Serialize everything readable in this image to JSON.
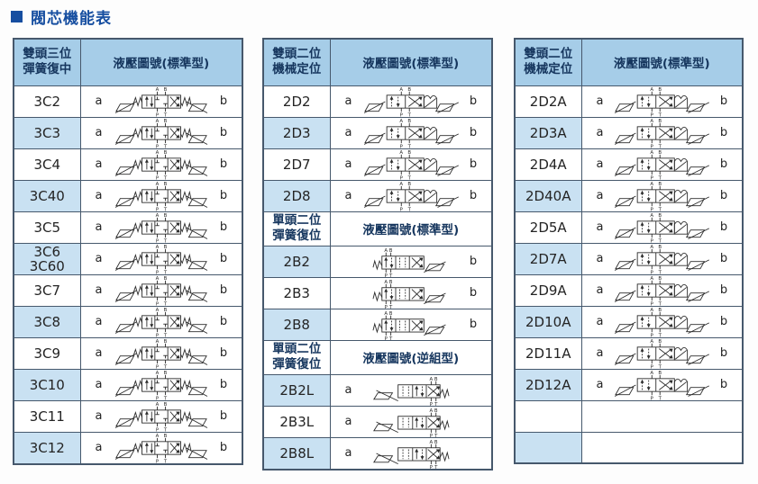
{
  "title": {
    "text": "閥芯機能表"
  },
  "colors": {
    "accent": "#164ea0",
    "header_bg": "#a6cde8",
    "shaded_bg": "#c9e1f2",
    "border": "#46586c",
    "symbol_ink": "#2b2b2b"
  },
  "symbol_legend": {
    "valve-3pos-spring-centered": "double-solenoid 3-position spring-centered valve schematic",
    "valve-2pos-detent": "double-solenoid 2-position mechanical-detent valve schematic",
    "valve-2pos-spring-left": "single-solenoid 2-position spring-return valve schematic (spring left)",
    "valve-2pos-spring-right": "single-solenoid 2-position spring-return valve schematic, reversed (spring right)"
  },
  "tables": [
    {
      "name": "three-position-spring-centered",
      "rows": [
        {
          "kind": "header",
          "title_lines": [
            "雙頭三位",
            "彈簧復中"
          ],
          "caption": "液壓圖號(標準型)"
        },
        {
          "kind": "data",
          "model": [
            "3C2"
          ],
          "a": "a",
          "b": "b",
          "symbol": "valve-3pos-spring-centered",
          "shaded": false
        },
        {
          "kind": "data",
          "model": [
            "3C3"
          ],
          "a": "a",
          "b": "b",
          "symbol": "valve-3pos-spring-centered",
          "shaded": true
        },
        {
          "kind": "data",
          "model": [
            "3C4"
          ],
          "a": "a",
          "b": "b",
          "symbol": "valve-3pos-spring-centered",
          "shaded": false
        },
        {
          "kind": "data",
          "model": [
            "3C40"
          ],
          "a": "a",
          "b": "b",
          "symbol": "valve-3pos-spring-centered",
          "shaded": true
        },
        {
          "kind": "data",
          "model": [
            "3C5"
          ],
          "a": "a",
          "b": "b",
          "symbol": "valve-3pos-spring-centered",
          "shaded": false
        },
        {
          "kind": "data",
          "model": [
            "3C6",
            "3C60"
          ],
          "a": "a",
          "b": "b",
          "symbol": "valve-3pos-spring-centered",
          "shaded": true
        },
        {
          "kind": "data",
          "model": [
            "3C7"
          ],
          "a": "a",
          "b": "b",
          "symbol": "valve-3pos-spring-centered",
          "shaded": false
        },
        {
          "kind": "data",
          "model": [
            "3C8"
          ],
          "a": "a",
          "b": "b",
          "symbol": "valve-3pos-spring-centered",
          "shaded": true
        },
        {
          "kind": "data",
          "model": [
            "3C9"
          ],
          "a": "a",
          "b": "b",
          "symbol": "valve-3pos-spring-centered",
          "shaded": false
        },
        {
          "kind": "data",
          "model": [
            "3C10"
          ],
          "a": "a",
          "b": "b",
          "symbol": "valve-3pos-spring-centered",
          "shaded": true
        },
        {
          "kind": "data",
          "model": [
            "3C11"
          ],
          "a": "a",
          "b": "b",
          "symbol": "valve-3pos-spring-centered",
          "shaded": false
        },
        {
          "kind": "data",
          "model": [
            "3C12"
          ],
          "a": "a",
          "b": "b",
          "symbol": "valve-3pos-spring-centered",
          "shaded": true
        }
      ]
    },
    {
      "name": "two-position-detent-and-spring-return",
      "rows": [
        {
          "kind": "header",
          "title_lines": [
            "雙頭二位",
            "機械定位"
          ],
          "caption": "液壓圖號(標準型)"
        },
        {
          "kind": "data",
          "model": [
            "2D2"
          ],
          "a": "a",
          "b": "b",
          "symbol": "valve-2pos-detent",
          "shaded": false
        },
        {
          "kind": "data",
          "model": [
            "2D3"
          ],
          "a": "a",
          "b": "b",
          "symbol": "valve-2pos-detent",
          "shaded": true
        },
        {
          "kind": "data",
          "model": [
            "2D7"
          ],
          "a": "a",
          "b": "b",
          "symbol": "valve-2pos-detent",
          "shaded": false
        },
        {
          "kind": "data",
          "model": [
            "2D8"
          ],
          "a": "a",
          "b": "b",
          "symbol": "valve-2pos-detent",
          "shaded": true
        },
        {
          "kind": "subheader",
          "title_lines": [
            "單頭二位",
            "彈簧復位"
          ],
          "caption": "液壓圖號(標準型)"
        },
        {
          "kind": "data",
          "model": [
            "2B2"
          ],
          "a": "",
          "b": "b",
          "symbol": "valve-2pos-spring-left",
          "shaded": true
        },
        {
          "kind": "data",
          "model": [
            "2B3"
          ],
          "a": "",
          "b": "b",
          "symbol": "valve-2pos-spring-left",
          "shaded": false
        },
        {
          "kind": "data",
          "model": [
            "2B8"
          ],
          "a": "",
          "b": "b",
          "symbol": "valve-2pos-spring-left",
          "shaded": true
        },
        {
          "kind": "subheader",
          "title_lines": [
            "單頭二位",
            "彈簧復位"
          ],
          "caption": "液壓圖號(逆組型)"
        },
        {
          "kind": "data",
          "model": [
            "2B2L"
          ],
          "a": "a",
          "b": "",
          "symbol": "valve-2pos-spring-right",
          "shaded": true
        },
        {
          "kind": "data",
          "model": [
            "2B3L"
          ],
          "a": "a",
          "b": "",
          "symbol": "valve-2pos-spring-right",
          "shaded": false
        },
        {
          "kind": "data",
          "model": [
            "2B8L"
          ],
          "a": "a",
          "b": "",
          "symbol": "valve-2pos-spring-right",
          "shaded": true
        }
      ]
    },
    {
      "name": "two-position-detent-A-series",
      "rows": [
        {
          "kind": "header",
          "title_lines": [
            "雙頭二位",
            "機械定位"
          ],
          "caption": "液壓圖號(標準型)"
        },
        {
          "kind": "data",
          "model": [
            "2D2A"
          ],
          "a": "a",
          "b": "b",
          "symbol": "valve-2pos-detent",
          "shaded": false
        },
        {
          "kind": "data",
          "model": [
            "2D3A"
          ],
          "a": "a",
          "b": "b",
          "symbol": "valve-2pos-detent",
          "shaded": true
        },
        {
          "kind": "data",
          "model": [
            "2D4A"
          ],
          "a": "a",
          "b": "b",
          "symbol": "valve-2pos-detent",
          "shaded": false
        },
        {
          "kind": "data",
          "model": [
            "2D40A"
          ],
          "a": "a",
          "b": "b",
          "symbol": "valve-2pos-detent",
          "shaded": true
        },
        {
          "kind": "data",
          "model": [
            "2D5A"
          ],
          "a": "a",
          "b": "b",
          "symbol": "valve-2pos-detent",
          "shaded": false
        },
        {
          "kind": "data",
          "model": [
            "2D7A"
          ],
          "a": "a",
          "b": "b",
          "symbol": "valve-2pos-detent",
          "shaded": true
        },
        {
          "kind": "data",
          "model": [
            "2D9A"
          ],
          "a": "a",
          "b": "b",
          "symbol": "valve-2pos-detent",
          "shaded": false
        },
        {
          "kind": "data",
          "model": [
            "2D10A"
          ],
          "a": "a",
          "b": "b",
          "symbol": "valve-2pos-detent",
          "shaded": true
        },
        {
          "kind": "data",
          "model": [
            "2D11A"
          ],
          "a": "a",
          "b": "b",
          "symbol": "valve-2pos-detent",
          "shaded": false
        },
        {
          "kind": "data",
          "model": [
            "2D12A"
          ],
          "a": "a",
          "b": "b",
          "symbol": "valve-2pos-detent",
          "shaded": true
        },
        {
          "kind": "data",
          "model": [],
          "a": "",
          "b": "",
          "symbol": "none",
          "shaded": false
        },
        {
          "kind": "data",
          "model": [],
          "a": "",
          "b": "",
          "symbol": "none",
          "shaded": true
        }
      ]
    }
  ]
}
